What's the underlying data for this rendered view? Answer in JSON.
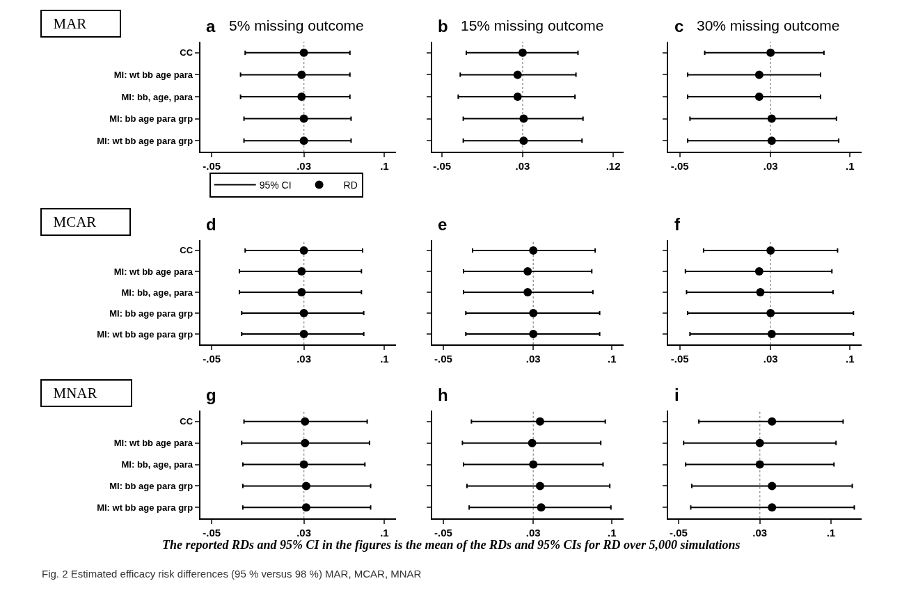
{
  "chart_data": [
    {
      "type": "scatter",
      "orientation": "horizontal",
      "title": "5% missing outcome",
      "annotations": [
        "a",
        "MAR"
      ],
      "categories": [
        "CC",
        "MI: wt bb age para",
        "MI: bb, age, para",
        "MI: bb age para grp",
        "MI: wt bb age para grp"
      ],
      "xlim": [
        -0.06,
        0.11
      ],
      "xticks": [
        {
          "value": -0.05,
          "label": "-.05"
        },
        {
          "value": 0.03,
          "label": ".03"
        },
        {
          "value": 0.1,
          "label": ".1"
        }
      ],
      "legend": "bottom",
      "legend_title": "95% CI",
      "ref_lines": [
        {
          "axis": "x",
          "value": 0.03,
          "color": "#9a9a9a",
          "line_style": "dotted"
        }
      ],
      "series": [
        {
          "name": "RD",
          "color": "#000000",
          "marker": "circle",
          "values": [
            0.03,
            0.028,
            0.028,
            0.03,
            0.03
          ],
          "errors": [
            [
              -0.021,
              0.07
            ],
            [
              -0.025,
              0.07
            ],
            [
              -0.025,
              0.07
            ],
            [
              -0.022,
              0.071
            ],
            [
              -0.022,
              0.071
            ]
          ]
        }
      ]
    },
    {
      "type": "scatter",
      "orientation": "horizontal",
      "title": "15% missing outcome",
      "annotations": [
        "b"
      ],
      "categories": [
        null,
        null,
        null,
        null,
        null
      ],
      "tick_labels": "x",
      "xlim": [
        -0.06,
        0.13
      ],
      "xticks": [
        {
          "value": -0.05,
          "label": "-.05"
        },
        {
          "value": 0.03,
          "label": ".03"
        },
        {
          "value": 0.12,
          "label": ".12"
        }
      ],
      "ref_lines": [
        {
          "axis": "x",
          "value": 0.03,
          "color": "#9a9a9a",
          "line_style": "dotted"
        }
      ],
      "series": [
        {
          "color": "#000000",
          "marker": "circle",
          "values": [
            0.03,
            0.025,
            0.025,
            0.031,
            0.031
          ],
          "errors": [
            [
              -0.026,
              0.085
            ],
            [
              -0.032,
              0.083
            ],
            [
              -0.034,
              0.082
            ],
            [
              -0.029,
              0.09
            ],
            [
              -0.029,
              0.089
            ]
          ]
        }
      ]
    },
    {
      "type": "scatter",
      "orientation": "horizontal",
      "title": "30% missing outcome",
      "annotations": [
        "c"
      ],
      "categories": [
        null,
        null,
        null,
        null,
        null
      ],
      "tick_labels": "x",
      "xlim": [
        -0.06,
        0.11
      ],
      "xticks": [
        {
          "value": -0.05,
          "label": "-.05"
        },
        {
          "value": 0.03,
          "label": ".03"
        },
        {
          "value": 0.1,
          "label": ".1"
        }
      ],
      "ref_lines": [
        {
          "axis": "x",
          "value": 0.03,
          "color": "#9a9a9a",
          "line_style": "dotted"
        }
      ],
      "series": [
        {
          "color": "#000000",
          "marker": "circle",
          "values": [
            0.03,
            0.02,
            0.02,
            0.031,
            0.031
          ],
          "errors": [
            [
              -0.028,
              0.077
            ],
            [
              -0.043,
              0.074
            ],
            [
              -0.043,
              0.074
            ],
            [
              -0.041,
              0.088
            ],
            [
              -0.043,
              0.09
            ]
          ]
        }
      ]
    },
    {
      "type": "scatter",
      "orientation": "horizontal",
      "annotations": [
        "d",
        "MCAR"
      ],
      "categories": [
        "CC",
        "MI: wt bb age para",
        "MI: bb, age, para",
        "MI: bb age para grp",
        "MI: wt bb age para grp"
      ],
      "xlim": [
        -0.06,
        0.11
      ],
      "xticks": [
        {
          "value": -0.05,
          "label": "-.05"
        },
        {
          "value": 0.03,
          "label": ".03"
        },
        {
          "value": 0.1,
          "label": ".1"
        }
      ],
      "ref_lines": [
        {
          "axis": "x",
          "value": 0.03,
          "color": "#9a9a9a",
          "line_style": "dotted"
        }
      ],
      "series": [
        {
          "color": "#000000",
          "marker": "circle",
          "values": [
            0.03,
            0.028,
            0.028,
            0.03,
            0.03
          ],
          "errors": [
            [
              -0.021,
              0.081
            ],
            [
              -0.026,
              0.08
            ],
            [
              -0.026,
              0.08
            ],
            [
              -0.024,
              0.082
            ],
            [
              -0.024,
              0.082
            ]
          ]
        }
      ]
    },
    {
      "type": "scatter",
      "orientation": "horizontal",
      "annotations": [
        "e"
      ],
      "categories": [
        null,
        null,
        null,
        null,
        null
      ],
      "tick_labels": "x",
      "xlim": [
        -0.06,
        0.11
      ],
      "xticks": [
        {
          "value": -0.05,
          "label": "-.05"
        },
        {
          "value": 0.03,
          "label": ".03"
        },
        {
          "value": 0.1,
          "label": ".1"
        }
      ],
      "ref_lines": [
        {
          "axis": "x",
          "value": 0.03,
          "color": "#9a9a9a",
          "line_style": "dotted"
        }
      ],
      "series": [
        {
          "color": "#000000",
          "marker": "circle",
          "values": [
            0.03,
            0.025,
            0.025,
            0.03,
            0.03
          ],
          "errors": [
            [
              -0.024,
              0.085
            ],
            [
              -0.032,
              0.082
            ],
            [
              -0.032,
              0.083
            ],
            [
              -0.03,
              0.089
            ],
            [
              -0.03,
              0.089
            ]
          ]
        }
      ]
    },
    {
      "type": "scatter",
      "orientation": "horizontal",
      "annotations": [
        "f"
      ],
      "categories": [
        null,
        null,
        null,
        null,
        null
      ],
      "tick_labels": "x",
      "xlim": [
        -0.06,
        0.11
      ],
      "xticks": [
        {
          "value": -0.05,
          "label": "-.05"
        },
        {
          "value": 0.03,
          "label": ".03"
        },
        {
          "value": 0.1,
          "label": ".1"
        }
      ],
      "ref_lines": [
        {
          "axis": "x",
          "value": 0.03,
          "color": "#9a9a9a",
          "line_style": "dotted"
        }
      ],
      "series": [
        {
          "color": "#000000",
          "marker": "circle",
          "values": [
            0.03,
            0.02,
            0.021,
            0.03,
            0.031
          ],
          "errors": [
            [
              -0.029,
              0.089
            ],
            [
              -0.045,
              0.084
            ],
            [
              -0.044,
              0.085
            ],
            [
              -0.043,
              0.103
            ],
            [
              -0.041,
              0.103
            ]
          ]
        }
      ]
    },
    {
      "type": "scatter",
      "orientation": "horizontal",
      "annotations": [
        "g",
        "MNAR"
      ],
      "categories": [
        "CC",
        "MI: wt bb age para",
        "MI: bb, age, para",
        "MI: bb age para grp",
        "MI: wt bb age para grp"
      ],
      "xlim": [
        -0.06,
        0.11
      ],
      "xticks": [
        {
          "value": -0.05,
          "label": "-.05"
        },
        {
          "value": 0.03,
          "label": ".03"
        },
        {
          "value": 0.1,
          "label": ".1"
        }
      ],
      "ref_lines": [
        {
          "axis": "x",
          "value": 0.03,
          "color": "#9a9a9a",
          "line_style": "dotted"
        }
      ],
      "series": [
        {
          "color": "#000000",
          "marker": "circle",
          "values": [
            0.031,
            0.031,
            0.03,
            0.032,
            0.032
          ],
          "errors": [
            [
              -0.022,
              0.085
            ],
            [
              -0.024,
              0.087
            ],
            [
              -0.023,
              0.083
            ],
            [
              -0.023,
              0.088
            ],
            [
              -0.023,
              0.088
            ]
          ]
        }
      ]
    },
    {
      "type": "scatter",
      "orientation": "horizontal",
      "annotations": [
        "h"
      ],
      "categories": [
        null,
        null,
        null,
        null,
        null
      ],
      "tick_labels": "x",
      "xlim": [
        -0.06,
        0.11
      ],
      "xticks": [
        {
          "value": -0.05,
          "label": "-.05"
        },
        {
          "value": 0.03,
          "label": ".03"
        },
        {
          "value": 0.1,
          "label": ".1"
        }
      ],
      "ref_lines": [
        {
          "axis": "x",
          "value": 0.03,
          "color": "#9a9a9a",
          "line_style": "dotted"
        }
      ],
      "series": [
        {
          "color": "#000000",
          "marker": "circle",
          "values": [
            0.036,
            0.029,
            0.03,
            0.036,
            0.037
          ],
          "errors": [
            [
              -0.025,
              0.094
            ],
            [
              -0.033,
              0.09
            ],
            [
              -0.032,
              0.092
            ],
            [
              -0.029,
              0.098
            ],
            [
              -0.027,
              0.099
            ]
          ]
        }
      ]
    },
    {
      "type": "scatter",
      "orientation": "horizontal",
      "annotations": [
        "i",
        "The reported RDs and 95% CI in the figures is the mean of the RDs and 95% CIs for RD over 5,000 simulations",
        "Fig. 2 Estimated efficacy risk differences (95 % versus 98 %) MAR, MCAR, MNAR"
      ],
      "categories": [
        null,
        null,
        null,
        null,
        null
      ],
      "tick_labels": "x",
      "xlim": [
        -0.06,
        0.13
      ],
      "xticks": [
        {
          "value": -0.05,
          "label": "-.05"
        },
        {
          "value": 0.03,
          "label": ".03"
        },
        {
          "value": 0.1,
          "label": ".1"
        }
      ],
      "ref_lines": [
        {
          "axis": "x",
          "value": 0.03,
          "color": "#9a9a9a",
          "line_style": "dotted"
        }
      ],
      "series": [
        {
          "color": "#000000",
          "marker": "circle",
          "values": [
            0.042,
            0.03,
            0.03,
            0.042,
            0.042
          ],
          "errors": [
            [
              -0.03,
              0.112
            ],
            [
              -0.045,
              0.105
            ],
            [
              -0.043,
              0.103
            ],
            [
              -0.037,
              0.121
            ],
            [
              -0.038,
              0.123
            ]
          ]
        }
      ]
    }
  ]
}
